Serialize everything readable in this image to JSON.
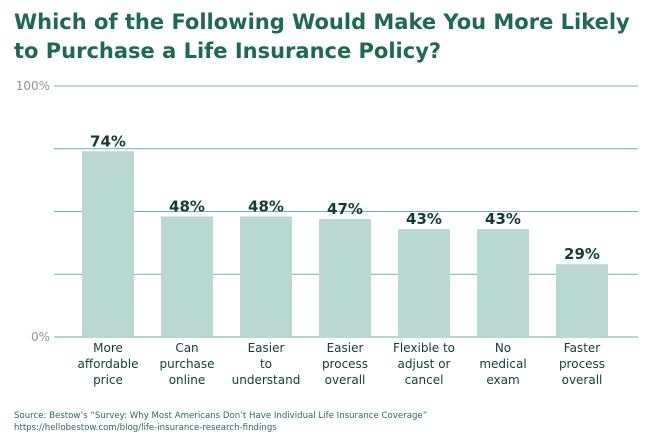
{
  "chart_data": {
    "type": "bar",
    "title": "Which of the Following Would Make You More Likely to Purchase a Life Insurance Policy?",
    "categories": [
      [
        "More",
        "affordable",
        "price"
      ],
      [
        "Can",
        "purchase",
        "online"
      ],
      [
        "Easier",
        "to",
        "understand"
      ],
      [
        "Easier",
        "process",
        "overall"
      ],
      [
        "Flexible to",
        "adjust or",
        "cancel"
      ],
      [
        "No",
        "medical",
        "exam"
      ],
      [
        "Faster",
        "process",
        "overall"
      ]
    ],
    "values": [
      74,
      48,
      48,
      47,
      43,
      43,
      29
    ],
    "data_labels": [
      "74%",
      "48%",
      "48%",
      "47%",
      "43%",
      "43%",
      "29%"
    ],
    "ylim": [
      0,
      100
    ],
    "ytick_labels": {
      "top": "100%",
      "bottom": "0%"
    },
    "grid": true,
    "colors": {
      "bar": "#b9d8d1",
      "title": "#1c6b4f",
      "grid": "#6fb6a6",
      "text": "#123f33",
      "axis_text": "#8a9a95"
    }
  },
  "source": {
    "line1": "Source: Bestow’s “Survey: Why Most Americans Don’t Have Individual Life Insurance Coverage”",
    "line2": "https://hellobestow.com/blog/life-insurance-research-findings"
  }
}
